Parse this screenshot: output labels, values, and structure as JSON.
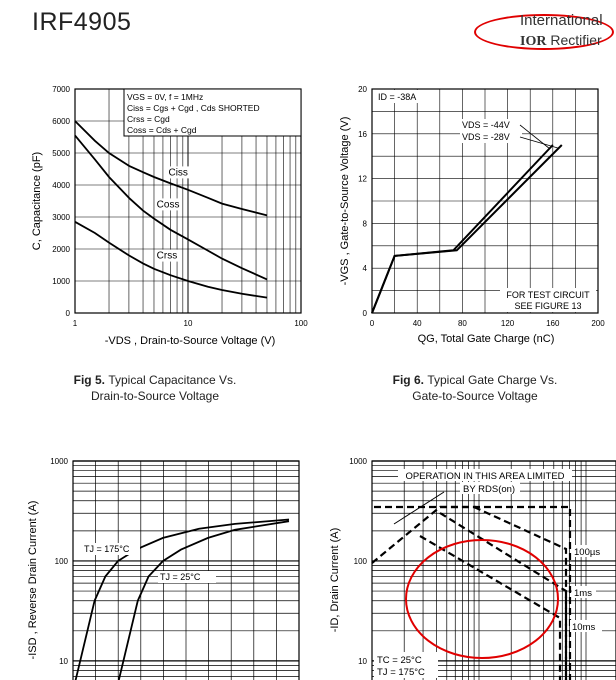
{
  "header": {
    "part_number": "IRF4905",
    "logo_line1": "International",
    "logo_line2_brand": "IOR",
    "logo_line2_rest": "Rectifier"
  },
  "captions": {
    "fig5_num": "Fig 5.",
    "fig5_text1": "Typical Capacitance Vs.",
    "fig5_text2": "Drain-to-Source Voltage",
    "fig6_num": "Fig 6.",
    "fig6_text1": "Typical Gate Charge Vs.",
    "fig6_text2": "Gate-to-Source Voltage"
  },
  "chart_data": [
    {
      "id": "fig5",
      "type": "line",
      "xscale": "log",
      "xlim": [
        1,
        100
      ],
      "ylim": [
        0,
        7000
      ],
      "xticks": [
        "1",
        "10",
        "100"
      ],
      "yticks": [
        "0",
        "1000",
        "2000",
        "3000",
        "4000",
        "5000",
        "6000",
        "7000"
      ],
      "xlabel": "-VDS , Drain-to-Source Voltage (V)",
      "ylabel": "C, Capacitance (pF)",
      "legend_lines": [
        "VGS = 0V,       f = 1MHz",
        "Ciss = Cgs + Cgd ,  Cds SHORTED",
        "Crss = Cgd",
        "Coss = Cds + Cgd"
      ],
      "series": [
        {
          "name": "Ciss",
          "x": [
            1,
            1.5,
            2,
            3,
            4,
            5,
            7,
            10,
            15,
            20,
            30,
            50
          ],
          "y": [
            6000,
            5380,
            5000,
            4600,
            4400,
            4250,
            4050,
            3850,
            3600,
            3420,
            3250,
            3050
          ]
        },
        {
          "name": "Coss",
          "x": [
            1,
            1.5,
            2,
            3,
            4,
            5,
            7,
            10,
            15,
            20,
            30,
            50
          ],
          "y": [
            5550,
            4800,
            4250,
            3600,
            3200,
            2950,
            2600,
            2300,
            1950,
            1700,
            1400,
            1050
          ]
        },
        {
          "name": "Crss",
          "x": [
            1,
            1.5,
            2,
            3,
            4,
            5,
            7,
            10,
            15,
            20,
            30,
            50
          ],
          "y": [
            2850,
            2500,
            2200,
            1800,
            1550,
            1380,
            1180,
            1000,
            820,
            720,
            600,
            480
          ]
        }
      ]
    },
    {
      "id": "fig6",
      "type": "line",
      "xlim": [
        0,
        200
      ],
      "ylim": [
        0,
        20
      ],
      "xticks": [
        "0",
        "40",
        "80",
        "120",
        "160",
        "200"
      ],
      "yticks": [
        "0",
        "4",
        "8",
        "12",
        "16",
        "20"
      ],
      "xlabel": "QG, Total Gate Charge (nC)",
      "ylabel": "-VGS , Gate-to-Source Voltage (V)",
      "condition": "ID = -38A",
      "annotation": [
        "FOR TEST CIRCUIT",
        "SEE FIGURE 13"
      ],
      "series": [
        {
          "name": "VDS = -44V",
          "x": [
            0,
            20,
            72,
            160
          ],
          "y": [
            0,
            5.1,
            5.6,
            15.0
          ]
        },
        {
          "name": "VDS = -28V",
          "x": [
            0,
            20,
            75,
            168
          ],
          "y": [
            0,
            5.1,
            5.6,
            15.0
          ]
        }
      ]
    },
    {
      "id": "fig7",
      "type": "line",
      "yscale": "log",
      "ylim": [
        5,
        1000
      ],
      "yticks": [
        "10",
        "100",
        "1000"
      ],
      "ylabel": "-ISD , Reverse Drain Current (A)",
      "series": [
        {
          "name": "TJ = 175°C",
          "x": [
            0.2,
            0.24,
            0.28,
            0.32,
            0.38,
            0.45,
            0.55,
            0.7,
            0.9,
            1.1,
            1.4
          ],
          "y": [
            5,
            10,
            20,
            40,
            70,
            100,
            130,
            170,
            210,
            235,
            260
          ]
        },
        {
          "name": "TJ = 25°C",
          "x": [
            0.44,
            0.48,
            0.52,
            0.56,
            0.62,
            0.7,
            0.8,
            0.95,
            1.1,
            1.4
          ],
          "y": [
            5,
            10,
            20,
            40,
            70,
            100,
            130,
            170,
            205,
            250
          ]
        }
      ]
    },
    {
      "id": "fig8",
      "type": "line",
      "yscale": "log",
      "ylim": [
        5,
        1000
      ],
      "yticks": [
        "10",
        "100",
        "1000"
      ],
      "ylabel": "-ID, Drain Current (A)",
      "annotation": [
        "OPERATION IN THIS AREA LIMITED",
        "BY RDS(on)"
      ],
      "conditions": [
        "TC = 25°C",
        "TJ = 175°C"
      ],
      "series": [
        {
          "name": "100µs"
        },
        {
          "name": "1ms"
        },
        {
          "name": "10ms"
        }
      ]
    }
  ]
}
